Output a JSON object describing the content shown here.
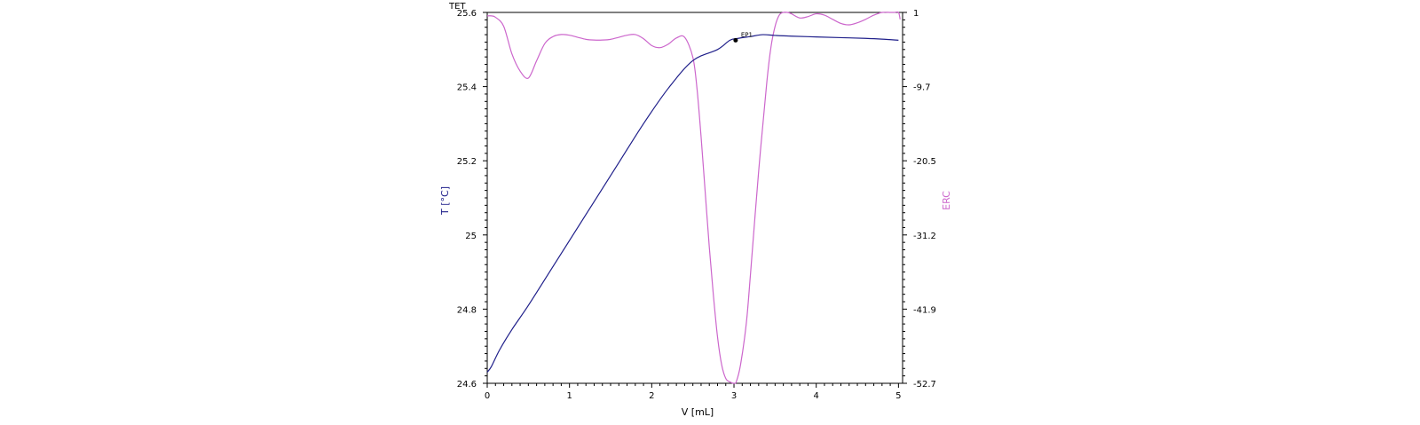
{
  "chart_data": {
    "type": "line",
    "title": "TET",
    "xlabel": "V [mL]",
    "ylabel_left": "T [°C]",
    "ylabel_right": "ERC",
    "xlim": [
      0,
      5.05
    ],
    "ylim_left": [
      24.6,
      25.6
    ],
    "ylim_right": [
      -52.7,
      1
    ],
    "x_ticks": [
      "0",
      "1",
      "2",
      "3",
      "4",
      "5"
    ],
    "y_left_ticks": [
      "25.6",
      "25.4",
      "25.2",
      "25",
      "24.8",
      "24.6"
    ],
    "y_right_ticks": [
      "1",
      "-9.7",
      "-20.5",
      "-31.2",
      "-41.9",
      "-52.7"
    ],
    "grid": false,
    "colors": {
      "temperature": "#1f1f8a",
      "erc": "#cc66cc",
      "frame": "#000000"
    },
    "series": [
      {
        "axis": "left",
        "x": [
          0,
          0.05,
          0.15,
          0.3,
          0.5,
          0.8,
          1.0,
          1.3,
          1.6,
          1.9,
          2.2,
          2.5,
          2.8,
          2.95,
          3.05,
          3.2,
          3.35,
          3.5,
          3.7,
          4.0,
          4.3,
          4.6,
          4.8,
          5.0
        ],
        "y": [
          24.63,
          24.645,
          24.69,
          24.745,
          24.81,
          24.915,
          24.985,
          25.09,
          25.195,
          25.3,
          25.395,
          25.47,
          25.5,
          25.525,
          25.53,
          25.535,
          25.54,
          25.538,
          25.536,
          25.534,
          25.532,
          25.53,
          25.528,
          25.525
        ]
      },
      {
        "axis": "right",
        "x": [
          0,
          0.05,
          0.1,
          0.2,
          0.3,
          0.4,
          0.5,
          0.6,
          0.7,
          0.8,
          0.9,
          1.0,
          1.1,
          1.2,
          1.3,
          1.4,
          1.5,
          1.6,
          1.7,
          1.8,
          1.9,
          2.0,
          2.1,
          2.2,
          2.3,
          2.4,
          2.5,
          2.55,
          2.6,
          2.65,
          2.7,
          2.75,
          2.8,
          2.85,
          2.9,
          2.95,
          3.0,
          3.03,
          3.08,
          3.15,
          3.2,
          3.3,
          3.4,
          3.45,
          3.5,
          3.55,
          3.6,
          3.65,
          3.7,
          3.8,
          3.9,
          4.0,
          4.1,
          4.2,
          4.3,
          4.4,
          4.5,
          4.6,
          4.7,
          4.8,
          4.9,
          4.95,
          5.0,
          5.02
        ],
        "y": [
          0.5,
          0.5,
          0.3,
          -1.0,
          -5.0,
          -7.5,
          -8.5,
          -6.0,
          -3.5,
          -2.5,
          -2.2,
          -2.3,
          -2.6,
          -2.9,
          -3.0,
          -3.0,
          -2.9,
          -2.6,
          -2.3,
          -2.2,
          -2.8,
          -3.8,
          -4.1,
          -3.6,
          -2.7,
          -2.6,
          -5.5,
          -10.0,
          -17.0,
          -25.0,
          -33.0,
          -40.0,
          -46.0,
          -50.0,
          -52.0,
          -52.5,
          -52.7,
          -52.4,
          -50.0,
          -44.0,
          -37.0,
          -22.0,
          -9.0,
          -4.0,
          -1.0,
          0.6,
          1.0,
          1.1,
          0.8,
          0.2,
          0.4,
          0.8,
          0.6,
          0.0,
          -0.6,
          -0.8,
          -0.5,
          0.0,
          0.6,
          1.0,
          1.3,
          1.3,
          1.2,
          0.0
        ]
      }
    ],
    "annotations": [
      {
        "label": "EP1",
        "x": 3.02,
        "y": 25.525
      }
    ]
  }
}
